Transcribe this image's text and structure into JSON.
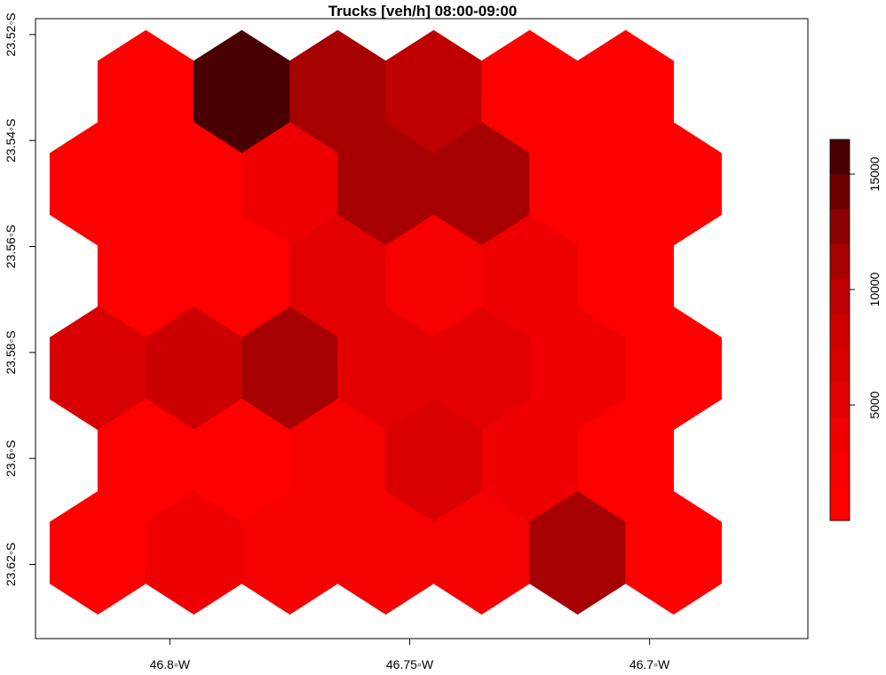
{
  "chart_data": {
    "type": "heatmap",
    "title": "Trucks [veh/h] 08:00-09:00",
    "xlabel": "",
    "ylabel": "",
    "x_ticks": [
      {
        "value": -46.8,
        "label": "46.8◦W"
      },
      {
        "value": -46.75,
        "label": "46.75◦W"
      },
      {
        "value": -46.7,
        "label": "46.7◦W"
      }
    ],
    "y_ticks": [
      {
        "value": -23.52,
        "label": "23.52◦S"
      },
      {
        "value": -23.54,
        "label": "23.54◦S"
      },
      {
        "value": -23.56,
        "label": "23.56◦S"
      },
      {
        "value": -23.58,
        "label": "23.58◦S"
      },
      {
        "value": -23.6,
        "label": "23.6◦S"
      },
      {
        "value": -23.62,
        "label": "23.62◦S"
      }
    ],
    "xlim": [
      -46.828,
      -46.667
    ],
    "ylim": [
      -23.634,
      -23.517
    ],
    "legend": {
      "position": "right",
      "breaks": [
        0,
        1500,
        3000,
        4500,
        6000,
        7500,
        9000,
        10500,
        12000,
        13500,
        15000,
        16500
      ],
      "colors": [
        "#ff0000",
        "#f70000",
        "#ee0000",
        "#e30000",
        "#d80000",
        "#cc0000",
        "#be0000",
        "#a60000",
        "#8b0000",
        "#6d0000",
        "#480000"
      ],
      "tick_values": [
        5000,
        10000,
        15000
      ],
      "tick_labels": [
        "5000",
        "10000",
        "15000"
      ]
    },
    "hexagons": [
      {
        "lon": -46.805,
        "lat": -23.5308,
        "value": 500
      },
      {
        "lon": -46.785,
        "lat": -23.5308,
        "value": 15500
      },
      {
        "lon": -46.765,
        "lat": -23.5308,
        "value": 11500
      },
      {
        "lon": -46.745,
        "lat": -23.5308,
        "value": 9500
      },
      {
        "lon": -46.725,
        "lat": -23.5308,
        "value": 500
      },
      {
        "lon": -46.705,
        "lat": -23.5308,
        "value": 500
      },
      {
        "lon": -46.815,
        "lat": -23.5482,
        "value": 500
      },
      {
        "lon": -46.795,
        "lat": -23.5482,
        "value": 500
      },
      {
        "lon": -46.775,
        "lat": -23.5482,
        "value": 3000
      },
      {
        "lon": -46.755,
        "lat": -23.5482,
        "value": 11500
      },
      {
        "lon": -46.735,
        "lat": -23.5482,
        "value": 11500
      },
      {
        "lon": -46.715,
        "lat": -23.5482,
        "value": 500
      },
      {
        "lon": -46.695,
        "lat": -23.5482,
        "value": 500
      },
      {
        "lon": -46.805,
        "lat": -23.5656,
        "value": 500
      },
      {
        "lon": -46.785,
        "lat": -23.5656,
        "value": 500
      },
      {
        "lon": -46.765,
        "lat": -23.5656,
        "value": 5000
      },
      {
        "lon": -46.745,
        "lat": -23.5656,
        "value": 2000
      },
      {
        "lon": -46.725,
        "lat": -23.5656,
        "value": 3000
      },
      {
        "lon": -46.705,
        "lat": -23.5656,
        "value": 500
      },
      {
        "lon": -46.815,
        "lat": -23.583,
        "value": 6500
      },
      {
        "lon": -46.795,
        "lat": -23.583,
        "value": 8000
      },
      {
        "lon": -46.775,
        "lat": -23.583,
        "value": 11500
      },
      {
        "lon": -46.755,
        "lat": -23.583,
        "value": 5000
      },
      {
        "lon": -46.735,
        "lat": -23.583,
        "value": 5000
      },
      {
        "lon": -46.715,
        "lat": -23.583,
        "value": 3500
      },
      {
        "lon": -46.695,
        "lat": -23.583,
        "value": 500
      },
      {
        "lon": -46.805,
        "lat": -23.6004,
        "value": 500
      },
      {
        "lon": -46.785,
        "lat": -23.6004,
        "value": 500
      },
      {
        "lon": -46.765,
        "lat": -23.6004,
        "value": 2000
      },
      {
        "lon": -46.745,
        "lat": -23.6004,
        "value": 6500
      },
      {
        "lon": -46.725,
        "lat": -23.6004,
        "value": 3000
      },
      {
        "lon": -46.705,
        "lat": -23.6004,
        "value": 500
      },
      {
        "lon": -46.815,
        "lat": -23.6178,
        "value": 500
      },
      {
        "lon": -46.795,
        "lat": -23.6178,
        "value": 3500
      },
      {
        "lon": -46.775,
        "lat": -23.6178,
        "value": 2000
      },
      {
        "lon": -46.755,
        "lat": -23.6178,
        "value": 2000
      },
      {
        "lon": -46.735,
        "lat": -23.6178,
        "value": 2000
      },
      {
        "lon": -46.715,
        "lat": -23.6178,
        "value": 11500
      },
      {
        "lon": -46.695,
        "lat": -23.6178,
        "value": 500
      }
    ]
  }
}
